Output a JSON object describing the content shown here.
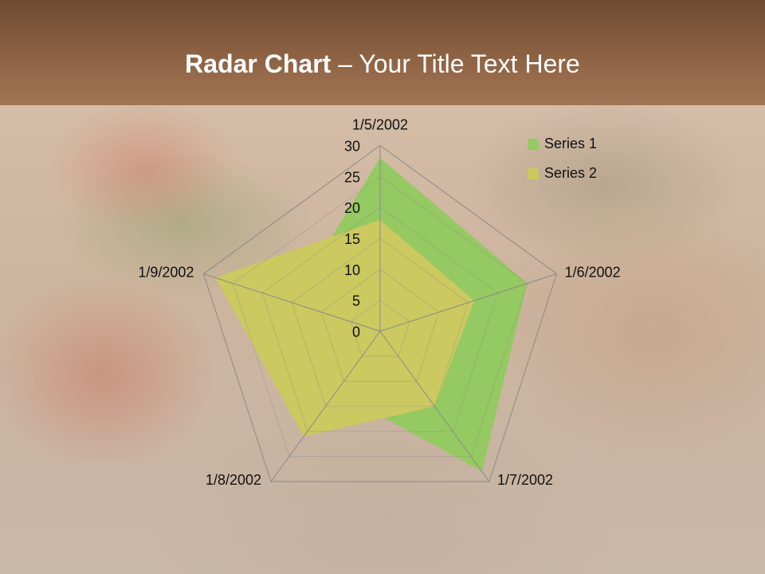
{
  "slide": {
    "title_bold": "Radar Chart",
    "title_rest": " – Your Title Text Here"
  },
  "chart_data": {
    "type": "radar",
    "categories": [
      "1/5/2002",
      "1/6/2002",
      "1/7/2002",
      "1/8/2002",
      "1/9/2002"
    ],
    "series": [
      {
        "name": "Series 1",
        "values": [
          28,
          25,
          28,
          12,
          15
        ],
        "color": "#95c962"
      },
      {
        "name": "Series 2",
        "values": [
          18,
          16,
          15,
          21,
          28
        ],
        "color": "#cbc95f"
      }
    ],
    "rlim": [
      0,
      30
    ],
    "ticks": [
      "0",
      "5",
      "10",
      "15",
      "20",
      "25",
      "30"
    ],
    "legend": "top-right",
    "grid": true
  }
}
